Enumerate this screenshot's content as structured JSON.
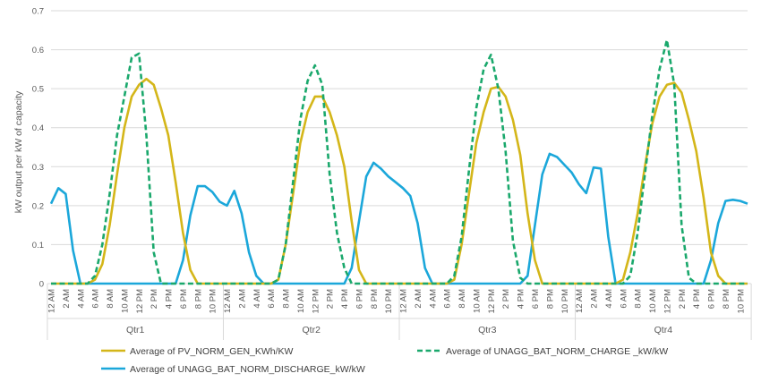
{
  "chart_data": {
    "type": "line",
    "ylabel": "kW output per kW of capacity",
    "ylim": [
      0,
      0.7
    ],
    "yticks": [
      "0",
      "0.1",
      "0.2",
      "0.3",
      "0.4",
      "0.5",
      "0.6",
      "0.7"
    ],
    "groups": [
      "Qtr1",
      "Qtr2",
      "Qtr3",
      "Qtr4"
    ],
    "x_tick_labels": [
      "12 AM",
      "2 AM",
      "4 AM",
      "6 AM",
      "8 AM",
      "10 AM",
      "12 PM",
      "2 PM",
      "4 PM",
      "6 PM",
      "8 PM",
      "10 PM"
    ],
    "hours_per_group": 24,
    "grid": "horizontal",
    "legend_position": "bottom",
    "series": [
      {
        "name": "Average of PV_NORM_GEN_KWh/KW",
        "color": "#d4b619",
        "dash": "solid",
        "values": [
          0,
          0,
          0,
          0,
          0,
          0,
          0.01,
          0.05,
          0.15,
          0.28,
          0.4,
          0.48,
          0.51,
          0.525,
          0.51,
          0.45,
          0.38,
          0.26,
          0.13,
          0.035,
          0,
          0,
          0,
          0,
          0,
          0,
          0,
          0,
          0,
          0,
          0,
          0.01,
          0.1,
          0.23,
          0.36,
          0.44,
          0.48,
          0.48,
          0.44,
          0.38,
          0.3,
          0.16,
          0.035,
          0,
          0,
          0,
          0,
          0,
          0,
          0,
          0,
          0,
          0,
          0,
          0,
          0.01,
          0.1,
          0.23,
          0.36,
          0.44,
          0.5,
          0.505,
          0.48,
          0.42,
          0.33,
          0.18,
          0.06,
          0,
          0,
          0,
          0,
          0,
          0,
          0,
          0,
          0,
          0,
          0,
          0.01,
          0.08,
          0.18,
          0.3,
          0.41,
          0.48,
          0.51,
          0.515,
          0.49,
          0.42,
          0.34,
          0.22,
          0.08,
          0.02,
          0,
          0,
          0,
          0
        ]
      },
      {
        "name": "Average of UNAGG_BAT_NORM_CHARGE _kW/kW",
        "color": "#1aa86c",
        "dash": "dashed",
        "values": [
          0,
          0,
          0,
          0,
          0,
          0,
          0.02,
          0.1,
          0.23,
          0.38,
          0.48,
          0.58,
          0.59,
          0.38,
          0.08,
          0,
          0,
          0,
          0,
          0,
          0,
          0,
          0,
          0,
          0,
          0,
          0,
          0,
          0,
          0,
          0,
          0.01,
          0.1,
          0.26,
          0.42,
          0.52,
          0.56,
          0.51,
          0.28,
          0.13,
          0.04,
          0,
          0,
          0,
          0,
          0,
          0,
          0,
          0,
          0,
          0,
          0,
          0,
          0,
          0,
          0.02,
          0.12,
          0.29,
          0.45,
          0.55,
          0.587,
          0.5,
          0.34,
          0.11,
          0.015,
          0,
          0,
          0,
          0,
          0,
          0,
          0,
          0,
          0,
          0,
          0,
          0,
          0,
          0,
          0.02,
          0.13,
          0.28,
          0.43,
          0.55,
          0.625,
          0.51,
          0.15,
          0.015,
          0,
          0,
          0,
          0,
          0,
          0,
          0,
          0
        ]
      },
      {
        "name": "Average of UNAGG_BAT_NORM_DISCHARGE_kW/kW",
        "color": "#1ba7da",
        "dash": "solid",
        "values": [
          0.205,
          0.245,
          0.23,
          0.085,
          0,
          0,
          0,
          0,
          0,
          0,
          0,
          0,
          0,
          0,
          0,
          0,
          0,
          0,
          0.06,
          0.175,
          0.25,
          0.25,
          0.235,
          0.21,
          0.2,
          0.238,
          0.18,
          0.08,
          0.02,
          0,
          0,
          0,
          0,
          0,
          0,
          0,
          0,
          0,
          0,
          0,
          0,
          0.04,
          0.16,
          0.275,
          0.31,
          0.295,
          0.275,
          0.26,
          0.245,
          0.225,
          0.155,
          0.04,
          0,
          0,
          0,
          0,
          0,
          0,
          0,
          0,
          0,
          0,
          0,
          0,
          0,
          0.02,
          0.15,
          0.28,
          0.333,
          0.325,
          0.305,
          0.285,
          0.255,
          0.232,
          0.298,
          0.295,
          0.12,
          0,
          0,
          0,
          0,
          0,
          0,
          0,
          0,
          0,
          0,
          0,
          0,
          0,
          0.06,
          0.155,
          0.212,
          0.215,
          0.212,
          0.205
        ]
      }
    ]
  }
}
